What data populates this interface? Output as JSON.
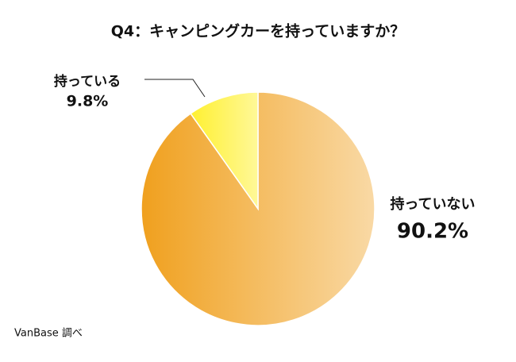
{
  "chart_data": {
    "type": "pie",
    "title": "Q4：キャンピングカーを持っていますか？",
    "categories": [
      "持っていない",
      "持っている"
    ],
    "values": [
      90.2,
      9.8
    ],
    "value_labels": [
      "90.2%",
      "9.8%"
    ],
    "colors": [
      "#f0a01e",
      "#fff030"
    ],
    "source": "VanBase 調べ"
  }
}
